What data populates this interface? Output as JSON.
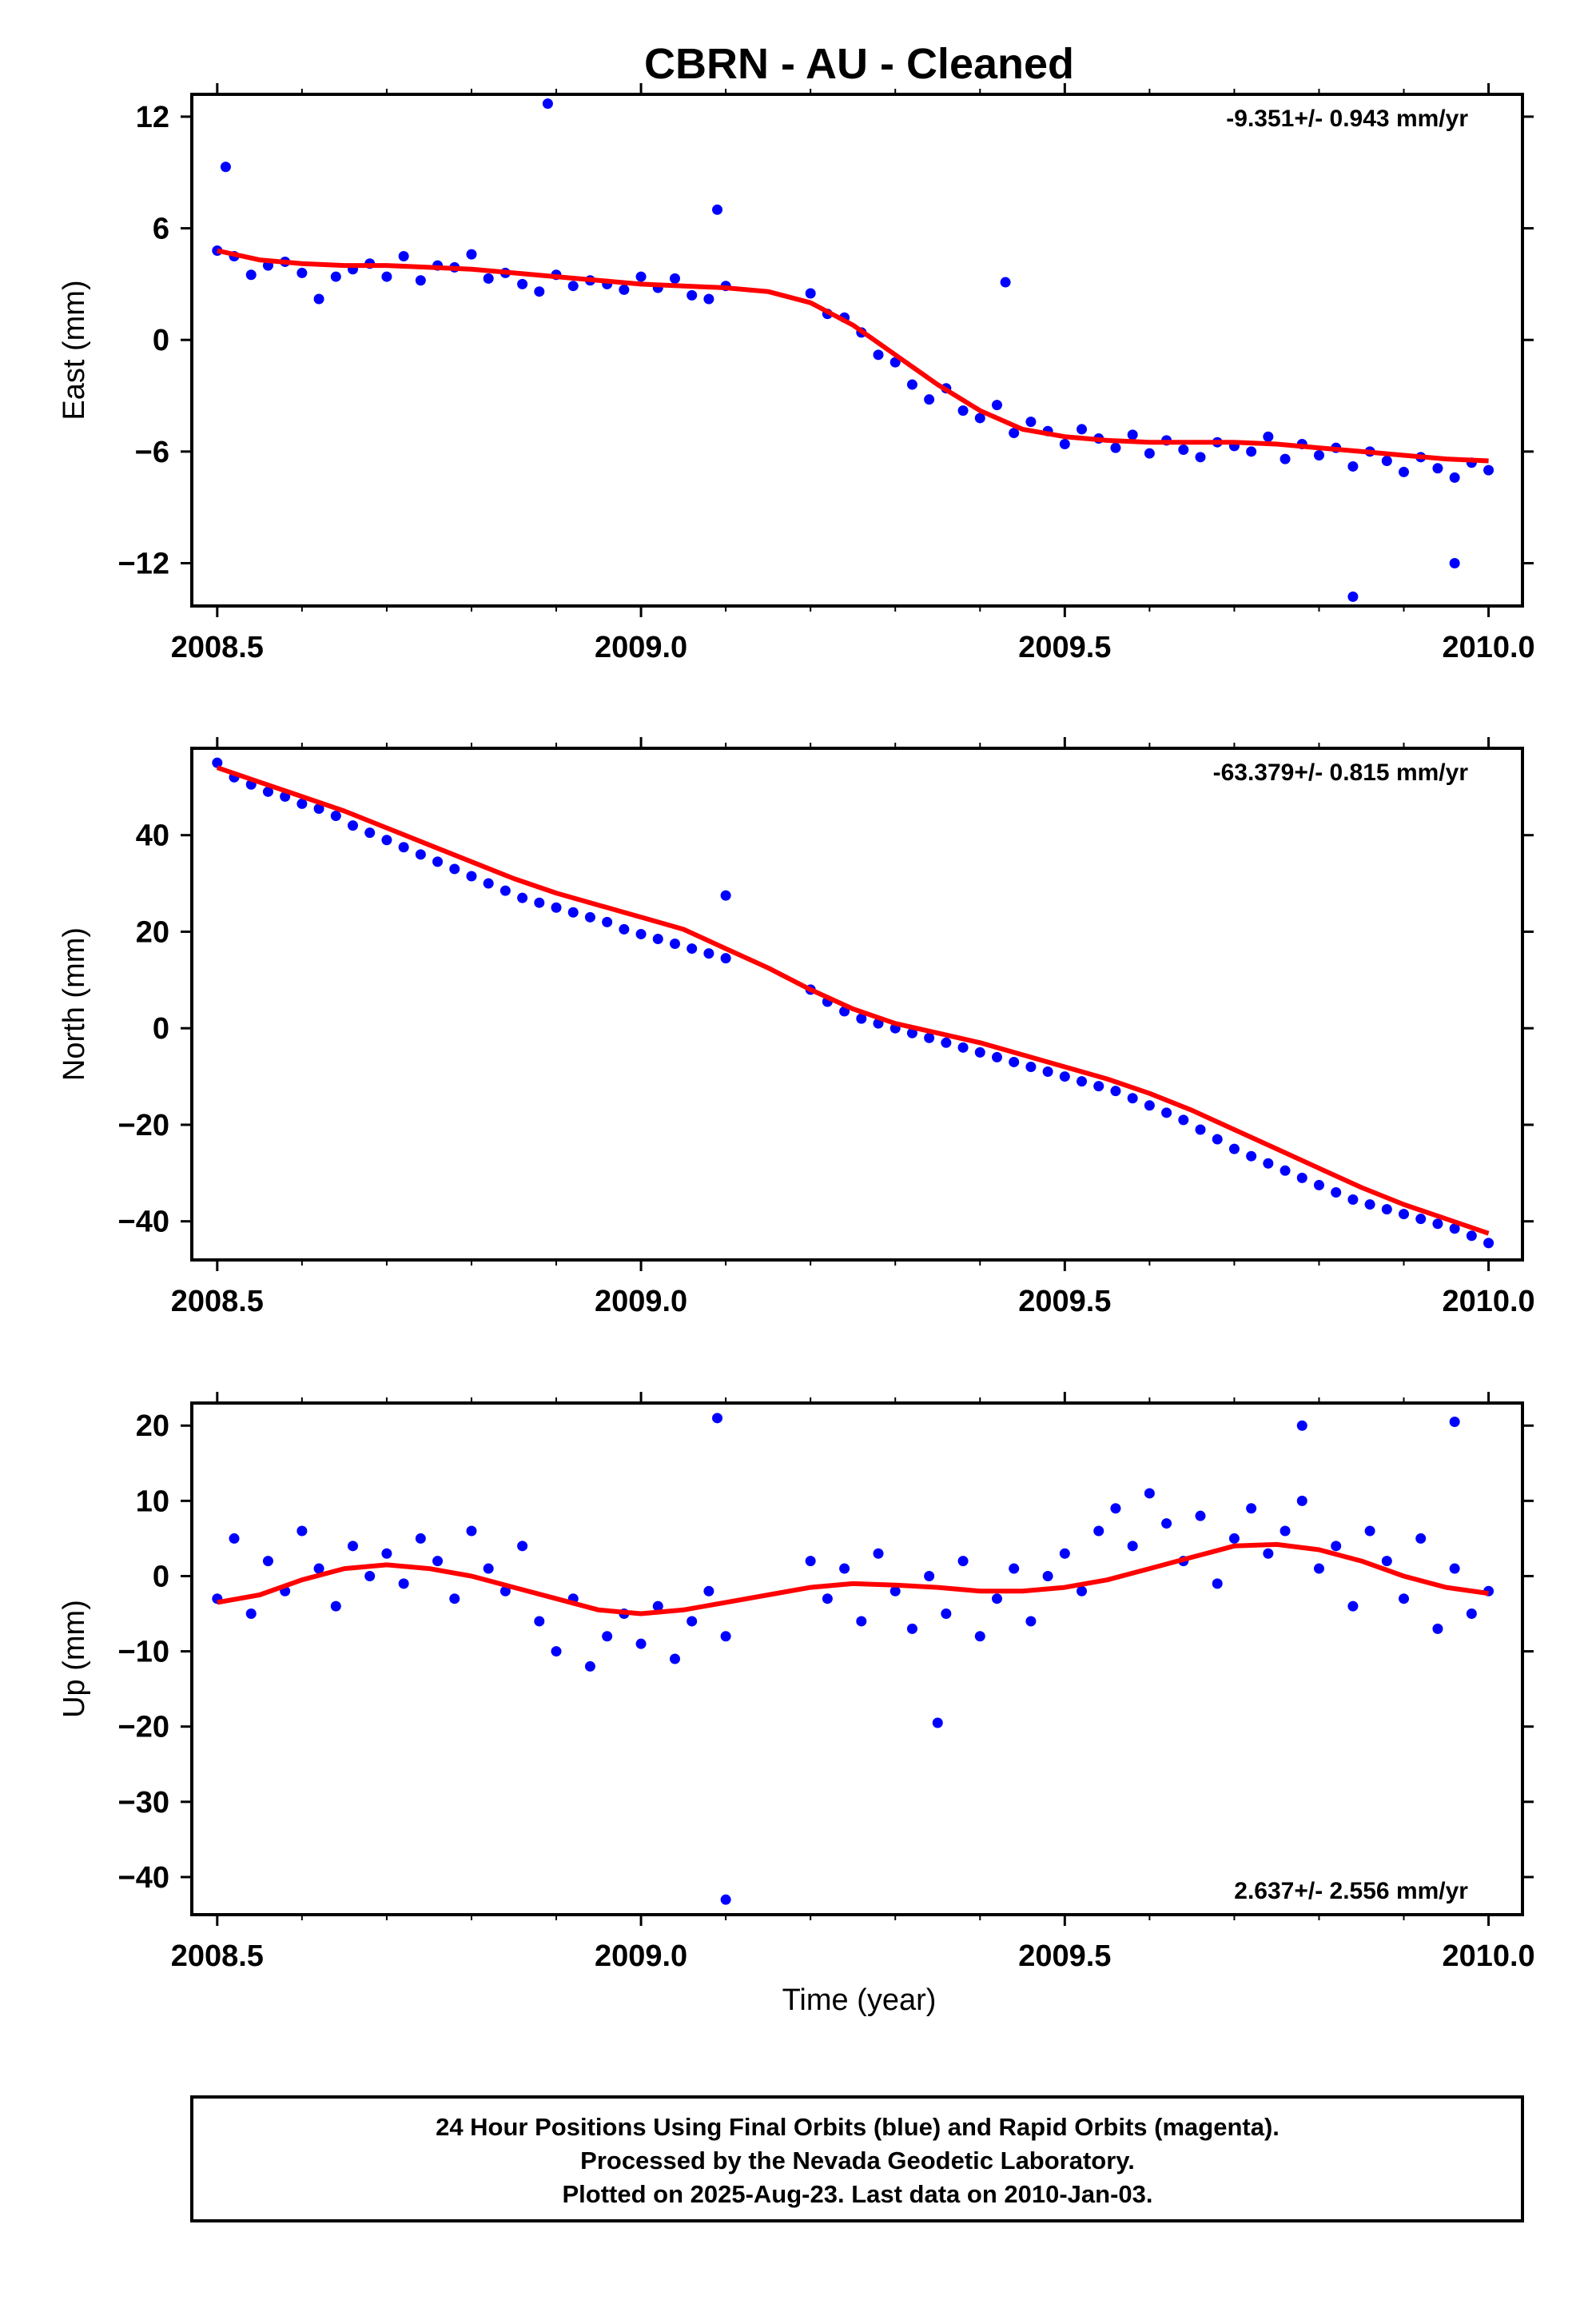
{
  "title": "CBRN  - AU - Cleaned",
  "x_axis_label": "Time (year)",
  "footer": {
    "lines": [
      "24 Hour Positions Using Final Orbits (blue) and Rapid Orbits (magenta).",
      "Processed by the Nevada Geodetic Laboratory.",
      "Plotted on 2025-Aug-23. Last data on 2010-Jan-03."
    ]
  },
  "colors": {
    "data_points": "#0000ff",
    "fit_line": "#ff0000",
    "frame": "#000000"
  },
  "chart_data": [
    {
      "type": "scatter",
      "ylabel": "East (mm)",
      "xlim": [
        2008.47,
        2010.04
      ],
      "ylim": [
        -14.3,
        13.2
      ],
      "xticks": [
        "2008.5",
        "2009.0",
        "2009.5",
        "2010.0"
      ],
      "yticks": [
        "12",
        "6",
        "0",
        "−6",
        "−12"
      ],
      "ytick_values": [
        12,
        6,
        0,
        -6,
        -12
      ],
      "rate_label": "-9.351+/- 0.943 mm/yr",
      "rate_label_position": "top-right",
      "series": [
        {
          "x": [
            2008.5,
            2008.52,
            2008.54,
            2008.56,
            2008.58,
            2008.6,
            2008.62,
            2008.64,
            2008.66,
            2008.68,
            2008.7,
            2008.72,
            2008.74,
            2008.76,
            2008.78,
            2008.8,
            2008.82,
            2008.84,
            2008.86,
            2008.88,
            2008.9,
            2008.92,
            2008.94,
            2008.96,
            2008.98,
            2009.0,
            2009.02,
            2009.04,
            2009.06,
            2009.08,
            2009.1,
            2009.2,
            2009.22,
            2009.24,
            2009.26,
            2009.28,
            2009.3,
            2009.32,
            2009.34,
            2009.36,
            2009.38,
            2009.4,
            2009.42,
            2009.44,
            2009.46,
            2009.48,
            2009.5,
            2009.52,
            2009.54,
            2009.56,
            2009.58,
            2009.6,
            2009.62,
            2009.64,
            2009.66,
            2009.68,
            2009.7,
            2009.72,
            2009.74,
            2009.76,
            2009.78,
            2009.8,
            2009.82,
            2009.84,
            2009.86,
            2009.88,
            2009.9,
            2009.92,
            2009.94,
            2009.96,
            2009.98,
            2010.0,
            2008.51,
            2008.89,
            2009.09,
            2009.43,
            2009.84,
            2009.96
          ],
          "y": [
            4.8,
            4.5,
            3.5,
            4.0,
            4.2,
            3.6,
            2.2,
            3.4,
            3.8,
            4.1,
            3.4,
            4.5,
            3.2,
            4.0,
            3.9,
            4.6,
            3.3,
            3.6,
            3.0,
            2.6,
            3.5,
            2.9,
            3.2,
            3.0,
            2.7,
            3.4,
            2.8,
            3.3,
            2.4,
            2.2,
            2.9,
            2.5,
            1.4,
            1.2,
            0.4,
            -0.8,
            -1.2,
            -2.4,
            -3.2,
            -2.6,
            -3.8,
            -4.2,
            -3.5,
            -5.0,
            -4.4,
            -4.9,
            -5.6,
            -4.8,
            -5.3,
            -5.8,
            -5.1,
            -6.1,
            -5.4,
            -5.9,
            -6.3,
            -5.5,
            -5.7,
            -6.0,
            -5.2,
            -6.4,
            -5.6,
            -6.2,
            -5.8,
            -6.8,
            -6.0,
            -6.5,
            -7.1,
            -6.3,
            -6.9,
            -7.4,
            -6.6,
            -7.0,
            9.3,
            12.7,
            7.0,
            3.1,
            -13.8,
            -12.0
          ]
        },
        {
          "name": "",
          "x": [
            2008.5,
            2008.55,
            2008.6,
            2008.65,
            2008.7,
            2008.75,
            2008.8,
            2008.85,
            2008.9,
            2008.95,
            2009.0,
            2009.05,
            2009.1,
            2009.15,
            2009.2,
            2009.25,
            2009.3,
            2009.35,
            2009.4,
            2009.45,
            2009.5,
            2009.55,
            2009.6,
            2009.65,
            2009.7,
            2009.75,
            2009.8,
            2009.85,
            2009.9,
            2009.95,
            2010.0
          ],
          "y": [
            4.8,
            4.3,
            4.1,
            4.0,
            4.0,
            3.9,
            3.8,
            3.6,
            3.4,
            3.2,
            3.0,
            2.9,
            2.8,
            2.6,
            2.0,
            0.8,
            -0.8,
            -2.4,
            -3.8,
            -4.8,
            -5.2,
            -5.4,
            -5.5,
            -5.5,
            -5.5,
            -5.6,
            -5.8,
            -6.0,
            -6.2,
            -6.4,
            -6.5
          ],
          "kind": "fit"
        }
      ]
    },
    {
      "type": "scatter",
      "ylabel": "North (mm)",
      "xlim": [
        2008.47,
        2010.04
      ],
      "ylim": [
        -48,
        58
      ],
      "xticks": [
        "2008.5",
        "2009.0",
        "2009.5",
        "2010.0"
      ],
      "yticks": [
        "40",
        "20",
        "0",
        "−20",
        "−40"
      ],
      "ytick_values": [
        40,
        20,
        0,
        -20,
        -40
      ],
      "rate_label": "-63.379+/- 0.815 mm/yr",
      "rate_label_position": "top-right",
      "series": [
        {
          "x": [
            2008.5,
            2008.52,
            2008.54,
            2008.56,
            2008.58,
            2008.6,
            2008.62,
            2008.64,
            2008.66,
            2008.68,
            2008.7,
            2008.72,
            2008.74,
            2008.76,
            2008.78,
            2008.8,
            2008.82,
            2008.84,
            2008.86,
            2008.88,
            2008.9,
            2008.92,
            2008.94,
            2008.96,
            2008.98,
            2009.0,
            2009.02,
            2009.04,
            2009.06,
            2009.08,
            2009.1,
            2009.2,
            2009.22,
            2009.24,
            2009.26,
            2009.28,
            2009.3,
            2009.32,
            2009.34,
            2009.36,
            2009.38,
            2009.4,
            2009.42,
            2009.44,
            2009.46,
            2009.48,
            2009.5,
            2009.52,
            2009.54,
            2009.56,
            2009.58,
            2009.6,
            2009.62,
            2009.64,
            2009.66,
            2009.68,
            2009.7,
            2009.72,
            2009.74,
            2009.76,
            2009.78,
            2009.8,
            2009.82,
            2009.84,
            2009.86,
            2009.88,
            2009.9,
            2009.92,
            2009.94,
            2009.96,
            2009.98,
            2010.0,
            2009.1
          ],
          "y": [
            55.0,
            52.0,
            50.5,
            49.0,
            48.0,
            46.5,
            45.5,
            44.0,
            42.0,
            40.5,
            39.0,
            37.5,
            36.0,
            34.5,
            33.0,
            31.5,
            30.0,
            28.5,
            27.0,
            26.0,
            25.0,
            24.0,
            23.0,
            22.0,
            20.5,
            19.5,
            18.5,
            17.5,
            16.5,
            15.5,
            14.5,
            8.0,
            5.5,
            3.5,
            2.0,
            1.0,
            0.0,
            -1.0,
            -2.0,
            -3.0,
            -4.0,
            -5.0,
            -6.0,
            -7.0,
            -8.0,
            -9.0,
            -10.0,
            -11.0,
            -12.0,
            -13.0,
            -14.5,
            -16.0,
            -17.5,
            -19.0,
            -21.0,
            -23.0,
            -25.0,
            -26.5,
            -28.0,
            -29.5,
            -31.0,
            -32.5,
            -34.0,
            -35.5,
            -36.5,
            -37.5,
            -38.5,
            -39.5,
            -40.5,
            -41.5,
            -43.0,
            -44.5,
            27.5
          ]
        },
        {
          "name": "",
          "x": [
            2008.5,
            2008.55,
            2008.6,
            2008.65,
            2008.7,
            2008.75,
            2008.8,
            2008.85,
            2008.9,
            2008.95,
            2009.0,
            2009.05,
            2009.1,
            2009.15,
            2009.2,
            2009.25,
            2009.3,
            2009.35,
            2009.4,
            2009.45,
            2009.5,
            2009.55,
            2009.6,
            2009.65,
            2009.7,
            2009.75,
            2009.8,
            2009.85,
            2009.9,
            2009.95,
            2010.0
          ],
          "y": [
            54.0,
            51.0,
            48.0,
            45.0,
            41.5,
            38.0,
            34.5,
            31.0,
            28.0,
            25.5,
            23.0,
            20.5,
            16.5,
            12.5,
            8.0,
            4.0,
            1.0,
            -1.0,
            -3.0,
            -5.5,
            -8.0,
            -10.5,
            -13.5,
            -17.0,
            -21.0,
            -25.0,
            -29.0,
            -33.0,
            -36.5,
            -39.5,
            -42.5
          ],
          "kind": "fit"
        }
      ]
    },
    {
      "type": "scatter",
      "ylabel": "Up (mm)",
      "xlim": [
        2008.47,
        2010.04
      ],
      "ylim": [
        -45,
        23
      ],
      "xticks": [
        "2008.5",
        "2009.0",
        "2009.5",
        "2010.0"
      ],
      "yticks": [
        "20",
        "10",
        "0",
        "−10",
        "−20",
        "−30",
        "−40"
      ],
      "ytick_values": [
        20,
        10,
        0,
        -10,
        -20,
        -30,
        -40
      ],
      "rate_label": "2.637+/- 2.556 mm/yr",
      "rate_label_position": "bottom-right",
      "series": [
        {
          "x": [
            2008.5,
            2008.52,
            2008.54,
            2008.56,
            2008.58,
            2008.6,
            2008.62,
            2008.64,
            2008.66,
            2008.68,
            2008.7,
            2008.72,
            2008.74,
            2008.76,
            2008.78,
            2008.8,
            2008.82,
            2008.84,
            2008.86,
            2008.88,
            2008.9,
            2008.92,
            2008.94,
            2008.96,
            2008.98,
            2009.0,
            2009.02,
            2009.04,
            2009.06,
            2009.08,
            2009.1,
            2009.2,
            2009.22,
            2009.24,
            2009.26,
            2009.28,
            2009.3,
            2009.32,
            2009.34,
            2009.36,
            2009.38,
            2009.4,
            2009.42,
            2009.44,
            2009.46,
            2009.48,
            2009.5,
            2009.52,
            2009.54,
            2009.56,
            2009.58,
            2009.6,
            2009.62,
            2009.64,
            2009.66,
            2009.68,
            2009.7,
            2009.72,
            2009.74,
            2009.76,
            2009.78,
            2009.8,
            2009.82,
            2009.84,
            2009.86,
            2009.88,
            2009.9,
            2009.92,
            2009.94,
            2009.96,
            2009.98,
            2010.0,
            2009.09,
            2009.1,
            2009.35,
            2009.78,
            2009.96
          ],
          "y": [
            -3.0,
            5.0,
            -5.0,
            2.0,
            -2.0,
            6.0,
            1.0,
            -4.0,
            4.0,
            0.0,
            3.0,
            -1.0,
            5.0,
            2.0,
            -3.0,
            6.0,
            1.0,
            -2.0,
            4.0,
            -6.0,
            -10.0,
            -3.0,
            -12.0,
            -8.0,
            -5.0,
            -9.0,
            -4.0,
            -11.0,
            -6.0,
            -2.0,
            -8.0,
            2.0,
            -3.0,
            1.0,
            -6.0,
            3.0,
            -2.0,
            -7.0,
            0.0,
            -5.0,
            2.0,
            -8.0,
            -3.0,
            1.0,
            -6.0,
            0.0,
            3.0,
            -2.0,
            6.0,
            9.0,
            4.0,
            11.0,
            7.0,
            2.0,
            8.0,
            -1.0,
            5.0,
            9.0,
            3.0,
            6.0,
            10.0,
            1.0,
            4.0,
            -4.0,
            6.0,
            2.0,
            -3.0,
            5.0,
            -7.0,
            1.0,
            -5.0,
            -2.0,
            21.0,
            -43.0,
            -19.5,
            20.0,
            20.5
          ]
        },
        {
          "name": "",
          "x": [
            2008.5,
            2008.55,
            2008.6,
            2008.65,
            2008.7,
            2008.75,
            2008.8,
            2008.85,
            2008.9,
            2008.95,
            2009.0,
            2009.05,
            2009.1,
            2009.15,
            2009.2,
            2009.25,
            2009.3,
            2009.35,
            2009.4,
            2009.45,
            2009.5,
            2009.55,
            2009.6,
            2009.65,
            2009.7,
            2009.75,
            2009.8,
            2009.85,
            2009.9,
            2009.95,
            2010.0
          ],
          "y": [
            -3.5,
            -2.5,
            -0.5,
            1.0,
            1.5,
            1.0,
            0.0,
            -1.5,
            -3.0,
            -4.5,
            -5.0,
            -4.5,
            -3.5,
            -2.5,
            -1.5,
            -1.0,
            -1.2,
            -1.5,
            -2.0,
            -2.0,
            -1.5,
            -0.5,
            1.0,
            2.5,
            4.0,
            4.2,
            3.5,
            2.0,
            0.0,
            -1.5,
            -2.3
          ],
          "kind": "fit"
        }
      ]
    }
  ]
}
